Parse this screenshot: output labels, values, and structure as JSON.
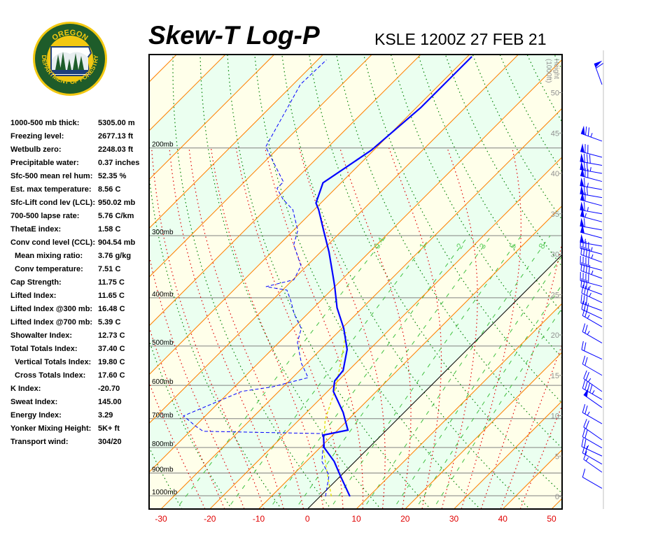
{
  "header": {
    "title": "Skew-T Log-P",
    "station_time": "KSLE 1200Z 27 FEB 21",
    "logo_text": "OREGON DEPARTMENT OF FORESTRY"
  },
  "stats": [
    {
      "label": "1000-500 mb thick:",
      "value": "5305.00 m",
      "indent": false
    },
    {
      "label": "Freezing level:",
      "value": "2677.13 ft",
      "indent": false
    },
    {
      "label": "Wetbulb zero:",
      "value": "2248.03 ft",
      "indent": false
    },
    {
      "label": "Precipitable water:",
      "value": "0.37 inches",
      "indent": false
    },
    {
      "label": "Sfc-500 mean rel hum:",
      "value": "52.35 %",
      "indent": false
    },
    {
      "label": "Est. max temperature:",
      "value": "8.56 C",
      "indent": false
    },
    {
      "label": "Sfc-Lift cond lev (LCL):",
      "value": "950.02 mb",
      "indent": false
    },
    {
      "label": "700-500 lapse rate:",
      "value": "5.76 C/km",
      "indent": false
    },
    {
      "label": "ThetaE index:",
      "value": "1.58 C",
      "indent": false
    },
    {
      "label": "Conv cond level (CCL):",
      "value": "904.54 mb",
      "indent": false
    },
    {
      "label": "Mean mixing ratio:",
      "value": "3.76 g/kg",
      "indent": true
    },
    {
      "label": "Conv temperature:",
      "value": "7.51 C",
      "indent": true
    },
    {
      "label": "Cap Strength:",
      "value": "11.75 C",
      "indent": false
    },
    {
      "label": "Lifted Index:",
      "value": "11.65 C",
      "indent": false
    },
    {
      "label": "Lifted Index @300 mb:",
      "value": "16.48 C",
      "indent": false
    },
    {
      "label": "Lifted Index @700 mb:",
      "value": "5.39 C",
      "indent": false
    },
    {
      "label": "Showalter Index:",
      "value": "12.73 C",
      "indent": false
    },
    {
      "label": "Total Totals Index:",
      "value": "37.40 C",
      "indent": false
    },
    {
      "label": "Vertical Totals Index:",
      "value": "19.80 C",
      "indent": true
    },
    {
      "label": "Cross Totals Index:",
      "value": "17.60 C",
      "indent": true
    },
    {
      "label": "K Index:",
      "value": "-20.70",
      "indent": false
    },
    {
      "label": "Sweat Index:",
      "value": "145.00",
      "indent": false
    },
    {
      "label": "Energy Index:",
      "value": "3.29",
      "indent": false
    },
    {
      "label": "Yonker Mixing Height:",
      "value": "5K+ ft",
      "indent": false
    },
    {
      "label": "Transport wind:",
      "value": "304/20",
      "indent": false
    }
  ],
  "chart_data": {
    "type": "skew-t",
    "title": "Skew-T Log-P",
    "xlabel": "",
    "ylabel": "",
    "temperature_range_at_bottom_C": [
      -32.5,
      52
    ],
    "pressure_range_mb": [
      1063,
      130
    ],
    "temperature_ticks": [
      -30,
      -20,
      -10,
      0,
      10,
      20,
      30,
      40,
      50
    ],
    "isobars": [
      {
        "p": 200,
        "label": "200mb"
      },
      {
        "p": 300,
        "label": "300mb"
      },
      {
        "p": 400,
        "label": "400mb"
      },
      {
        "p": 500,
        "label": "500mb"
      },
      {
        "p": 600,
        "label": "600mb"
      },
      {
        "p": 700,
        "label": "700mb"
      },
      {
        "p": 800,
        "label": "800mb"
      },
      {
        "p": 900,
        "label": "900mb"
      },
      {
        "p": 1000,
        "label": "1000mb"
      }
    ],
    "height_axis": {
      "label": "Height",
      "units": "(1000ft)",
      "ticks": [
        0,
        5,
        10,
        15,
        20,
        25,
        30,
        35,
        40,
        45,
        50
      ]
    },
    "mixing_ratio_labels": [
      "0.4",
      "1",
      "2",
      "3",
      "5",
      "8"
    ],
    "mixing_ratios": [
      0.4,
      1,
      2,
      3,
      5,
      8,
      12,
      16,
      20
    ],
    "colors": {
      "temperature": "#0000ff",
      "dewpoint": "#0000ff",
      "parcel": "#e0e000",
      "isotherm": "#ff8000",
      "zero_isotherm": "#000000",
      "dry_adiabat": "#008000",
      "moist_adiabat": "#e00000",
      "mixing_ratio": "#40c040",
      "isobar": "#808080",
      "band_warm": "#ffffea",
      "band_cool": "#ebfff0",
      "wind": "#0000ff",
      "tick_label": "#e00000"
    },
    "temperature_profile": [
      [
        1003,
        6.1
      ],
      [
        910,
        -0.2
      ],
      [
        853,
        -4.3
      ],
      [
        800,
        -9.2
      ],
      [
        755,
        -11.9
      ],
      [
        738,
        -7.9
      ],
      [
        680,
        -12.5
      ],
      [
        617,
        -18.8
      ],
      [
        588,
        -20.7
      ],
      [
        560,
        -21.1
      ],
      [
        508,
        -24.6
      ],
      [
        461,
        -29.6
      ],
      [
        419,
        -35.2
      ],
      [
        380,
        -40.0
      ],
      [
        362,
        -42.5
      ],
      [
        323,
        -48.4
      ],
      [
        293,
        -53.8
      ],
      [
        266,
        -59.1
      ],
      [
        258,
        -61.0
      ],
      [
        235,
        -63.7
      ],
      [
        202,
        -60.5
      ],
      [
        166,
        -59.1
      ],
      [
        131,
        -59.1
      ]
    ],
    "dewpoint_profile": [
      [
        1003,
        1.1
      ],
      [
        910,
        -2.5
      ],
      [
        853,
        -6.8
      ],
      [
        774,
        -10.8
      ],
      [
        750,
        -12.5
      ],
      [
        742,
        -37.3
      ],
      [
        726,
        -39.7
      ],
      [
        691,
        -44.5
      ],
      [
        617,
        -37.6
      ],
      [
        604,
        -32.2
      ],
      [
        579,
        -26.8
      ],
      [
        542,
        -31.1
      ],
      [
        492,
        -36.2
      ],
      [
        461,
        -38.3
      ],
      [
        432,
        -42.6
      ],
      [
        405,
        -46.2
      ],
      [
        386,
        -49.1
      ],
      [
        380,
        -54.1
      ],
      [
        368,
        -49.8
      ],
      [
        345,
        -51.2
      ],
      [
        313,
        -57.0
      ],
      [
        293,
        -59.1
      ],
      [
        266,
        -64.4
      ],
      [
        254,
        -68.4
      ],
      [
        241,
        -72.0
      ],
      [
        234,
        -72.0
      ],
      [
        199,
        -82.8
      ],
      [
        149,
        -88.5
      ],
      [
        133,
        -88.2
      ]
    ],
    "parcel_profile": [
      [
        1003,
        2.3
      ],
      [
        910,
        -2.8
      ],
      [
        800,
        -9.4
      ],
      [
        703,
        -14.7
      ],
      [
        608,
        -19.0
      ],
      [
        508,
        -25.4
      ],
      [
        469,
        -28.4
      ]
    ],
    "winds_height_kft_dir_kt": [
      [
        51,
        340,
        60
      ],
      [
        44,
        290,
        75
      ],
      [
        42,
        285,
        70
      ],
      [
        41,
        280,
        80
      ],
      [
        40,
        280,
        75
      ],
      [
        39,
        285,
        70
      ],
      [
        38,
        280,
        65
      ],
      [
        37,
        280,
        70
      ],
      [
        36,
        285,
        60
      ],
      [
        35,
        280,
        65
      ],
      [
        34,
        285,
        55
      ],
      [
        33,
        280,
        60
      ],
      [
        32,
        285,
        50
      ],
      [
        31,
        280,
        55
      ],
      [
        30,
        285,
        45
      ],
      [
        29,
        290,
        45
      ],
      [
        28,
        285,
        40
      ],
      [
        27,
        290,
        45
      ],
      [
        26,
        285,
        40
      ],
      [
        25,
        290,
        35
      ],
      [
        24,
        295,
        35
      ],
      [
        23,
        290,
        30
      ],
      [
        22,
        295,
        30
      ],
      [
        21,
        300,
        25
      ],
      [
        19,
        300,
        25
      ],
      [
        17,
        295,
        20
      ],
      [
        15,
        300,
        20
      ],
      [
        13,
        305,
        25
      ],
      [
        12,
        300,
        45
      ],
      [
        11,
        305,
        50
      ],
      [
        9,
        300,
        25
      ],
      [
        7,
        305,
        20
      ],
      [
        6,
        300,
        20
      ],
      [
        5,
        295,
        25
      ],
      [
        4,
        300,
        20
      ],
      [
        3,
        305,
        15
      ],
      [
        1,
        300,
        10
      ]
    ]
  }
}
